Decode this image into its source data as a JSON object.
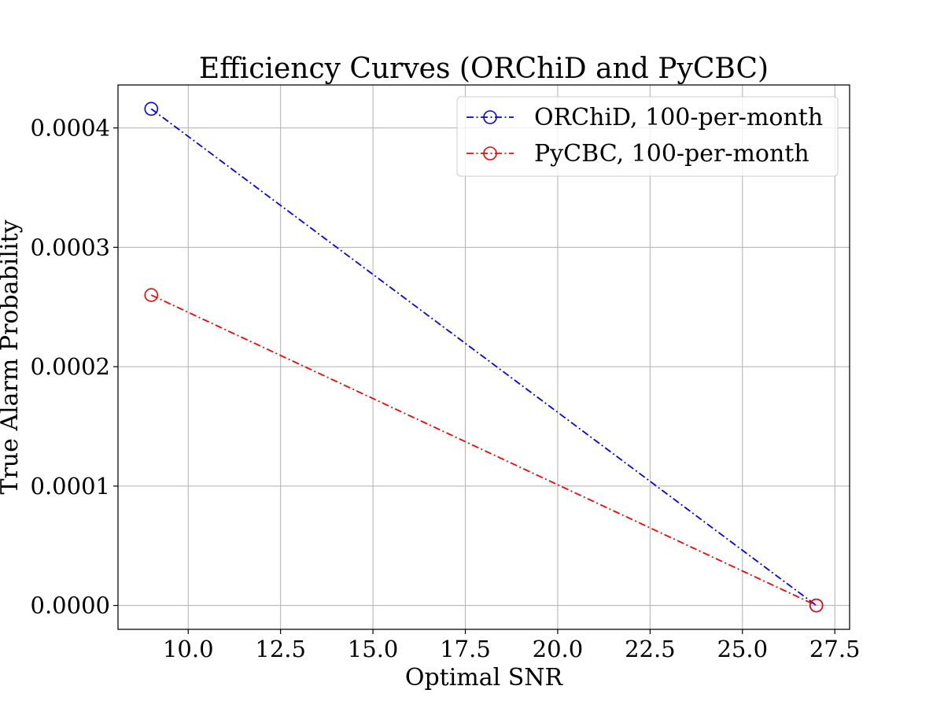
{
  "chart_data": {
    "type": "line",
    "title": "Efficiency Curves (ORChiD and PyCBC)",
    "xlabel": "Optimal SNR",
    "ylabel": "True Alarm Probability",
    "xlim": [
      8.1,
      27.9
    ],
    "ylim": [
      -2e-05,
      0.000436
    ],
    "xticks": [
      10.0,
      12.5,
      15.0,
      17.5,
      20.0,
      22.5,
      25.0,
      27.5
    ],
    "xtick_labels": [
      "10.0",
      "12.5",
      "15.0",
      "17.5",
      "20.0",
      "22.5",
      "25.0",
      "27.5"
    ],
    "yticks": [
      0.0,
      0.0001,
      0.0002,
      0.0003,
      0.0004
    ],
    "ytick_labels": [
      "0.0000",
      "0.0001",
      "0.0002",
      "0.0003",
      "0.0004"
    ],
    "grid": true,
    "legend_position": "top-right",
    "series": [
      {
        "name": "ORChiD, 100-per-month",
        "color": "#0000ff",
        "line_style": "dash-dot",
        "marker": "open-circle",
        "x": [
          9.0,
          27.0
        ],
        "y": [
          0.000416,
          0.0
        ]
      },
      {
        "name": "PyCBC, 100-per-month",
        "color": "#ff0000",
        "line_style": "dash-dot",
        "marker": "open-circle",
        "x": [
          9.0,
          27.0
        ],
        "y": [
          0.00026,
          0.0
        ]
      }
    ]
  }
}
